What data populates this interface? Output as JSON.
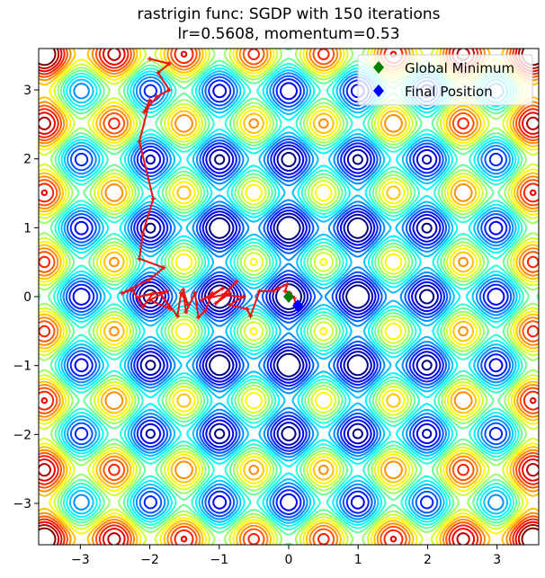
{
  "chart_data": {
    "type": "contour",
    "title_line1": "rastrigin func: SGDP with 150 iterations",
    "title_line2": "lr=0.5608, momentum=0.53",
    "xlim": [
      -3.6,
      3.6
    ],
    "ylim": [
      -3.6,
      3.6
    ],
    "xticks": [
      -3,
      -2,
      -1,
      0,
      1,
      2,
      3
    ],
    "yticks": [
      -3,
      -2,
      -1,
      0,
      1,
      2,
      3
    ],
    "xtick_labels": [
      "−3",
      "−2",
      "−1",
      "0",
      "1",
      "2",
      "3"
    ],
    "ytick_labels": [
      "−3",
      "−2",
      "−1",
      "0",
      "1",
      "2",
      "3"
    ],
    "grid": false,
    "legend_position": "top-right",
    "legend": [
      {
        "label": "Global Minimum",
        "color": "#008000",
        "marker": "diamond"
      },
      {
        "label": "Final Position",
        "color": "#0000ff",
        "marker": "diamond"
      }
    ],
    "global_minimum": [
      0,
      0
    ],
    "final_position": [
      0.13,
      -0.13
    ],
    "path_color": "#ee1111",
    "path": [
      [
        -2.0,
        3.45
      ],
      [
        -1.72,
        3.38
      ],
      [
        -1.88,
        3.25
      ],
      [
        -1.72,
        3.0
      ],
      [
        -1.9,
        2.9
      ],
      [
        -2.08,
        2.68
      ],
      [
        -2.0,
        2.85
      ],
      [
        -2.15,
        2.25
      ],
      [
        -1.95,
        1.42
      ],
      [
        -2.1,
        0.92
      ],
      [
        -2.15,
        0.55
      ],
      [
        -1.8,
        0.42
      ],
      [
        -2.0,
        0.25
      ],
      [
        -2.4,
        0.05
      ],
      [
        -2.25,
        0.1
      ],
      [
        -2.1,
        -0.15
      ],
      [
        -1.95,
        0.05
      ],
      [
        -2.15,
        0.0
      ],
      [
        -1.75,
        0.08
      ],
      [
        -2.0,
        -0.05
      ],
      [
        -1.7,
        -0.18
      ],
      [
        -1.85,
        0.05
      ],
      [
        -1.6,
        -0.28
      ],
      [
        -1.55,
        0.05
      ],
      [
        -1.45,
        -0.12
      ],
      [
        -1.52,
        0.1
      ],
      [
        -1.48,
        -0.22
      ],
      [
        -1.35,
        0.05
      ],
      [
        -1.3,
        -0.3
      ],
      [
        -1.2,
        -0.2
      ],
      [
        -1.1,
        0.05
      ],
      [
        -1.25,
        -0.05
      ],
      [
        -0.95,
        0.12
      ],
      [
        -1.15,
        -0.02
      ],
      [
        -0.85,
        0.05
      ],
      [
        -1.05,
        -0.1
      ],
      [
        -0.75,
        0.22
      ],
      [
        -0.95,
        0.02
      ],
      [
        -0.65,
        0.0
      ],
      [
        -0.85,
        -0.12
      ],
      [
        -0.6,
        -0.18
      ],
      [
        -0.55,
        -0.28
      ],
      [
        -0.42,
        0.08
      ],
      [
        -0.22,
        0.08
      ],
      [
        -0.15,
        0.12
      ],
      [
        -0.02,
        0.18
      ],
      [
        -0.05,
        0.08
      ],
      [
        0.02,
        0.05
      ],
      [
        0.08,
        -0.02
      ],
      [
        0.1,
        -0.1
      ],
      [
        0.13,
        -0.13
      ]
    ]
  }
}
